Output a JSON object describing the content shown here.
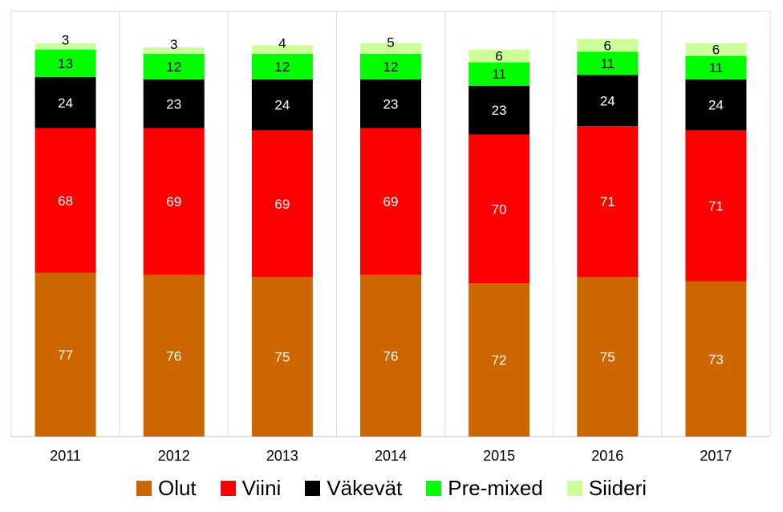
{
  "chart_data": {
    "type": "bar",
    "stacked": true,
    "categories": [
      "2011",
      "2012",
      "2013",
      "2014",
      "2015",
      "2016",
      "2017"
    ],
    "series": [
      {
        "name": "Olut",
        "color": "#cc6600",
        "label_color": "#ffffff",
        "values": [
          77,
          76,
          75,
          76,
          72,
          75,
          73
        ]
      },
      {
        "name": "Viini",
        "color": "#ff0000",
        "label_color": "#ffffff",
        "values": [
          68,
          69,
          69,
          69,
          70,
          71,
          71
        ]
      },
      {
        "name": "Väkevät",
        "color": "#000000",
        "label_color": "#ffffff",
        "values": [
          24,
          23,
          24,
          23,
          23,
          24,
          24
        ]
      },
      {
        "name": "Pre-mixed",
        "color": "#00ff00",
        "label_color": "#000000",
        "values": [
          13,
          12,
          12,
          12,
          11,
          11,
          11
        ]
      },
      {
        "name": "Siideri",
        "color": "#ccff99",
        "label_color": "#000000",
        "values": [
          3,
          3,
          4,
          5,
          6,
          6,
          6
        ]
      }
    ],
    "ylim": [
      0,
      200
    ],
    "data_labels": true,
    "grid": false,
    "legend_position": "bottom"
  }
}
